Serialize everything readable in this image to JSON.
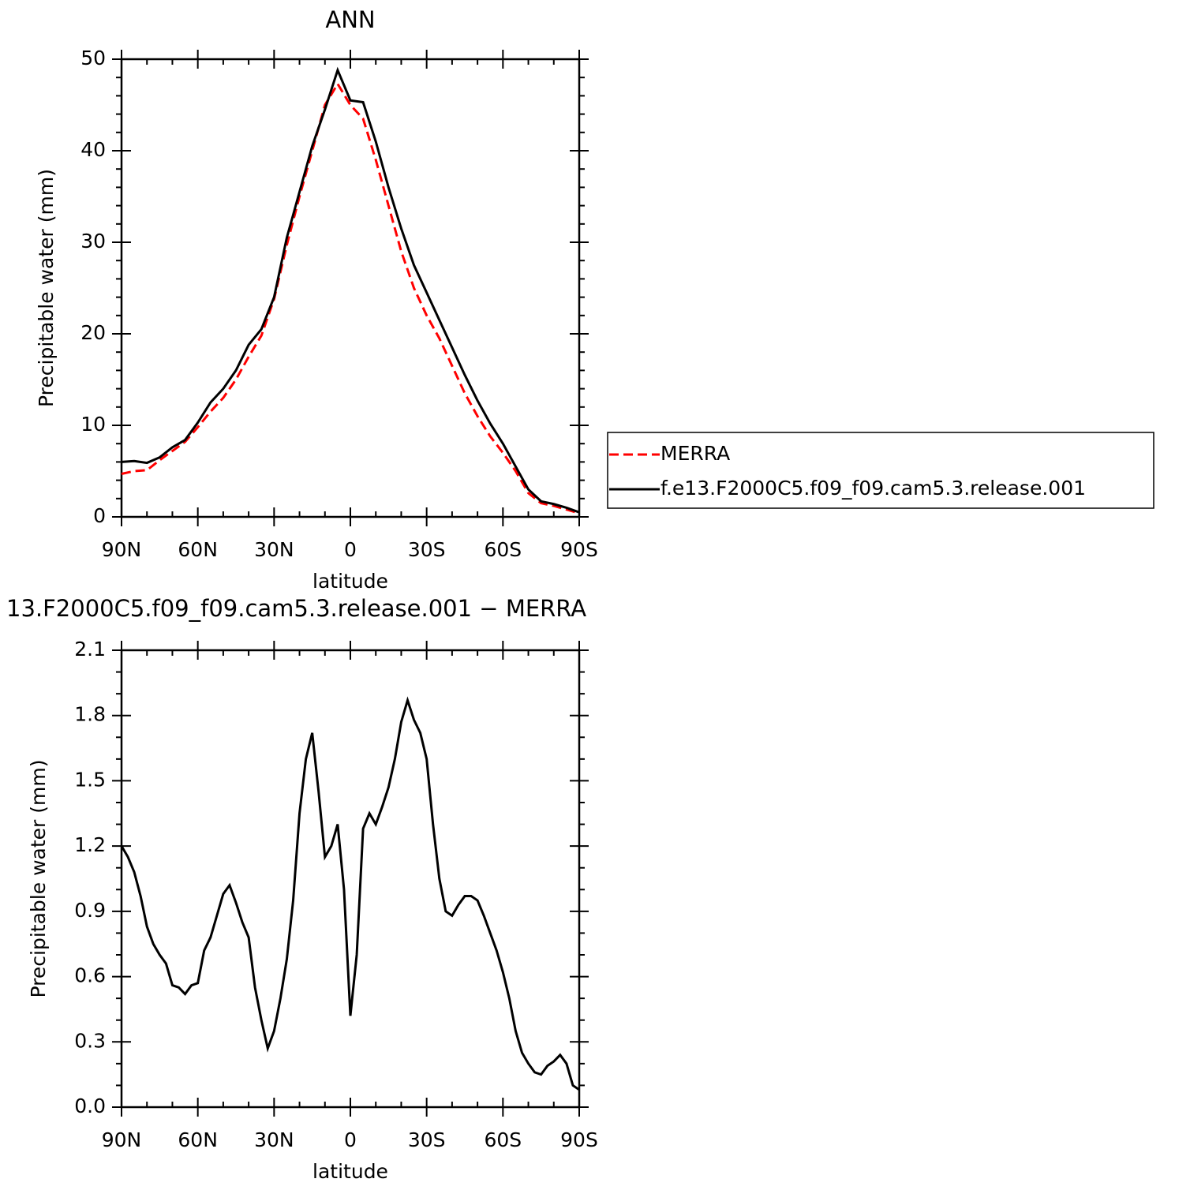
{
  "chart_data": [
    {
      "type": "line",
      "title": "ANN",
      "xlabel": "latitude",
      "ylabel": "Precipitable water (mm)",
      "x": [
        90,
        85,
        80,
        75,
        70,
        65,
        60,
        55,
        50,
        45,
        40,
        35,
        30,
        25,
        20,
        15,
        10,
        5,
        0,
        -5,
        -10,
        -15,
        -20,
        -25,
        -30,
        -35,
        -40,
        -45,
        -50,
        -55,
        -60,
        -65,
        -70,
        -75,
        -80,
        -85,
        -90
      ],
      "series": [
        {
          "name": "MERRA",
          "color": "#ff0000",
          "dashed": true,
          "values": [
            4.7,
            5.0,
            5.1,
            6.2,
            7.2,
            8.2,
            9.8,
            11.5,
            13.0,
            15.0,
            17.5,
            19.8,
            23.8,
            29.7,
            35.0,
            40.0,
            45.0,
            47.3,
            45.0,
            43.5,
            39.0,
            34.0,
            29.0,
            25.0,
            22.0,
            19.5,
            16.5,
            13.5,
            11.0,
            8.8,
            7.0,
            5.0,
            2.6,
            1.5,
            1.2,
            0.8,
            0.4
          ]
        },
        {
          "name": "f.e13.F2000C5.f09_f09.cam5.3.release.001",
          "color": "#000000",
          "dashed": false,
          "values": [
            6.0,
            6.1,
            5.9,
            6.5,
            7.6,
            8.4,
            10.3,
            12.5,
            14.0,
            16.0,
            18.8,
            20.5,
            24.0,
            30.5,
            35.5,
            40.5,
            44.5,
            48.8,
            45.5,
            45.3,
            41.0,
            36.0,
            31.5,
            27.5,
            24.5,
            21.5,
            18.5,
            15.5,
            12.7,
            10.2,
            8.0,
            5.5,
            3.0,
            1.7,
            1.4,
            1.0,
            0.5
          ]
        }
      ],
      "xlim": [
        90,
        -90
      ],
      "xticks": [
        {
          "value": 90,
          "label": "90N"
        },
        {
          "value": 60,
          "label": "60N"
        },
        {
          "value": 30,
          "label": "30N"
        },
        0,
        {
          "value": -30,
          "label": "30S"
        },
        {
          "value": -60,
          "label": "60S"
        },
        {
          "value": -90,
          "label": "90S"
        }
      ],
      "ylim": [
        0,
        50
      ],
      "yticks": [
        0,
        10,
        20,
        30,
        40,
        50
      ],
      "legend": "right"
    },
    {
      "type": "line",
      "title": "13.F2000C5.f09_f09.cam5.3.release.001 − MERRA",
      "xlabel": "latitude",
      "ylabel": "Precipitable water (mm)",
      "x": [
        90,
        87.5,
        85,
        82.5,
        80,
        77.5,
        75,
        72.5,
        70,
        67.5,
        65,
        62.5,
        60,
        57.5,
        55,
        52.5,
        50,
        47.5,
        45,
        42.5,
        40,
        37.5,
        35,
        32.5,
        30,
        27.5,
        25,
        22.5,
        20,
        17.5,
        15,
        12.5,
        10,
        7.5,
        5,
        2.5,
        0,
        -2.5,
        -5,
        -7.5,
        -10,
        -12.5,
        -15,
        -17.5,
        -20,
        -22.5,
        -25,
        -27.5,
        -30,
        -32.5,
        -35,
        -37.5,
        -40,
        -42.5,
        -45,
        -47.5,
        -50,
        -52.5,
        -55,
        -57.5,
        -60,
        -62.5,
        -65,
        -67.5,
        -70,
        -72.5,
        -75,
        -77.5,
        -80,
        -82.5,
        -85,
        -87.5,
        -90
      ],
      "series": [
        {
          "color": "#000000",
          "dashed": false,
          "values": [
            1.2,
            1.15,
            1.08,
            0.97,
            0.83,
            0.75,
            0.7,
            0.66,
            0.56,
            0.55,
            0.52,
            0.56,
            0.57,
            0.72,
            0.78,
            0.88,
            0.98,
            1.02,
            0.94,
            0.85,
            0.78,
            0.55,
            0.4,
            0.27,
            0.35,
            0.5,
            0.68,
            0.95,
            1.35,
            1.6,
            1.72,
            1.45,
            1.15,
            1.2,
            1.3,
            1.0,
            0.42,
            0.7,
            1.28,
            1.35,
            1.3,
            1.38,
            1.47,
            1.6,
            1.77,
            1.87,
            1.78,
            1.72,
            1.6,
            1.3,
            1.05,
            0.9,
            0.88,
            0.93,
            0.97,
            0.97,
            0.95,
            0.88,
            0.8,
            0.72,
            0.62,
            0.5,
            0.35,
            0.25,
            0.2,
            0.16,
            0.15,
            0.19,
            0.21,
            0.24,
            0.2,
            0.1,
            0.08
          ]
        }
      ],
      "xlim": [
        90,
        -90
      ],
      "xticks": [
        {
          "value": 90,
          "label": "90N"
        },
        {
          "value": 60,
          "label": "60N"
        },
        {
          "value": 30,
          "label": "30N"
        },
        0,
        {
          "value": -30,
          "label": "30S"
        },
        {
          "value": -60,
          "label": "60S"
        },
        {
          "value": -90,
          "label": "90S"
        }
      ],
      "ylim": [
        0,
        2.1
      ],
      "yticks": [
        {
          "value": 0,
          "label": "0.0"
        },
        0.3,
        0.6,
        0.9,
        1.2,
        1.5,
        1.8,
        2.1
      ]
    }
  ]
}
